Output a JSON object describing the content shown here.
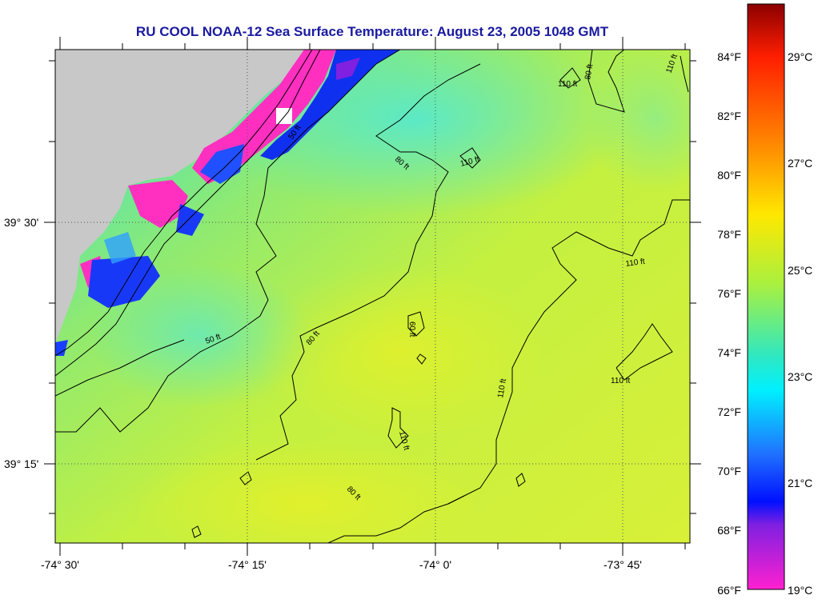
{
  "title": "RU COOL  NOAA-12  Sea Surface Temperature:  August 23, 2005 1048 GMT",
  "lon_labels": [
    "-74° 30'",
    "-74° 15'",
    "-74° 0'",
    "-73° 45'"
  ],
  "lat_labels": [
    "39° 30'",
    "39° 15'"
  ],
  "colorbar": {
    "f_labels": [
      "84°F",
      "82°F",
      "80°F",
      "78°F",
      "76°F",
      "74°F",
      "72°F",
      "70°F",
      "68°F",
      "66°F"
    ],
    "c_labels": [
      "29°C",
      "27°C",
      "25°C",
      "23°C",
      "21°C",
      "19°C"
    ]
  },
  "contour_labels": [
    "110 ft",
    "80 ft",
    "110 ft",
    "50 ft",
    "80 ft",
    "110 ft",
    "110 ft",
    "60 ft",
    "80 ft",
    "50 ft",
    "110 ft",
    "110 ft",
    "80 ft",
    "110 ft"
  ],
  "colors": {
    "land": "#c8c8c8",
    "water_main": "#c8f040",
    "water_cool": "#40e0d0",
    "cold": "#ff3cc8",
    "title": "#1a1aa0"
  }
}
